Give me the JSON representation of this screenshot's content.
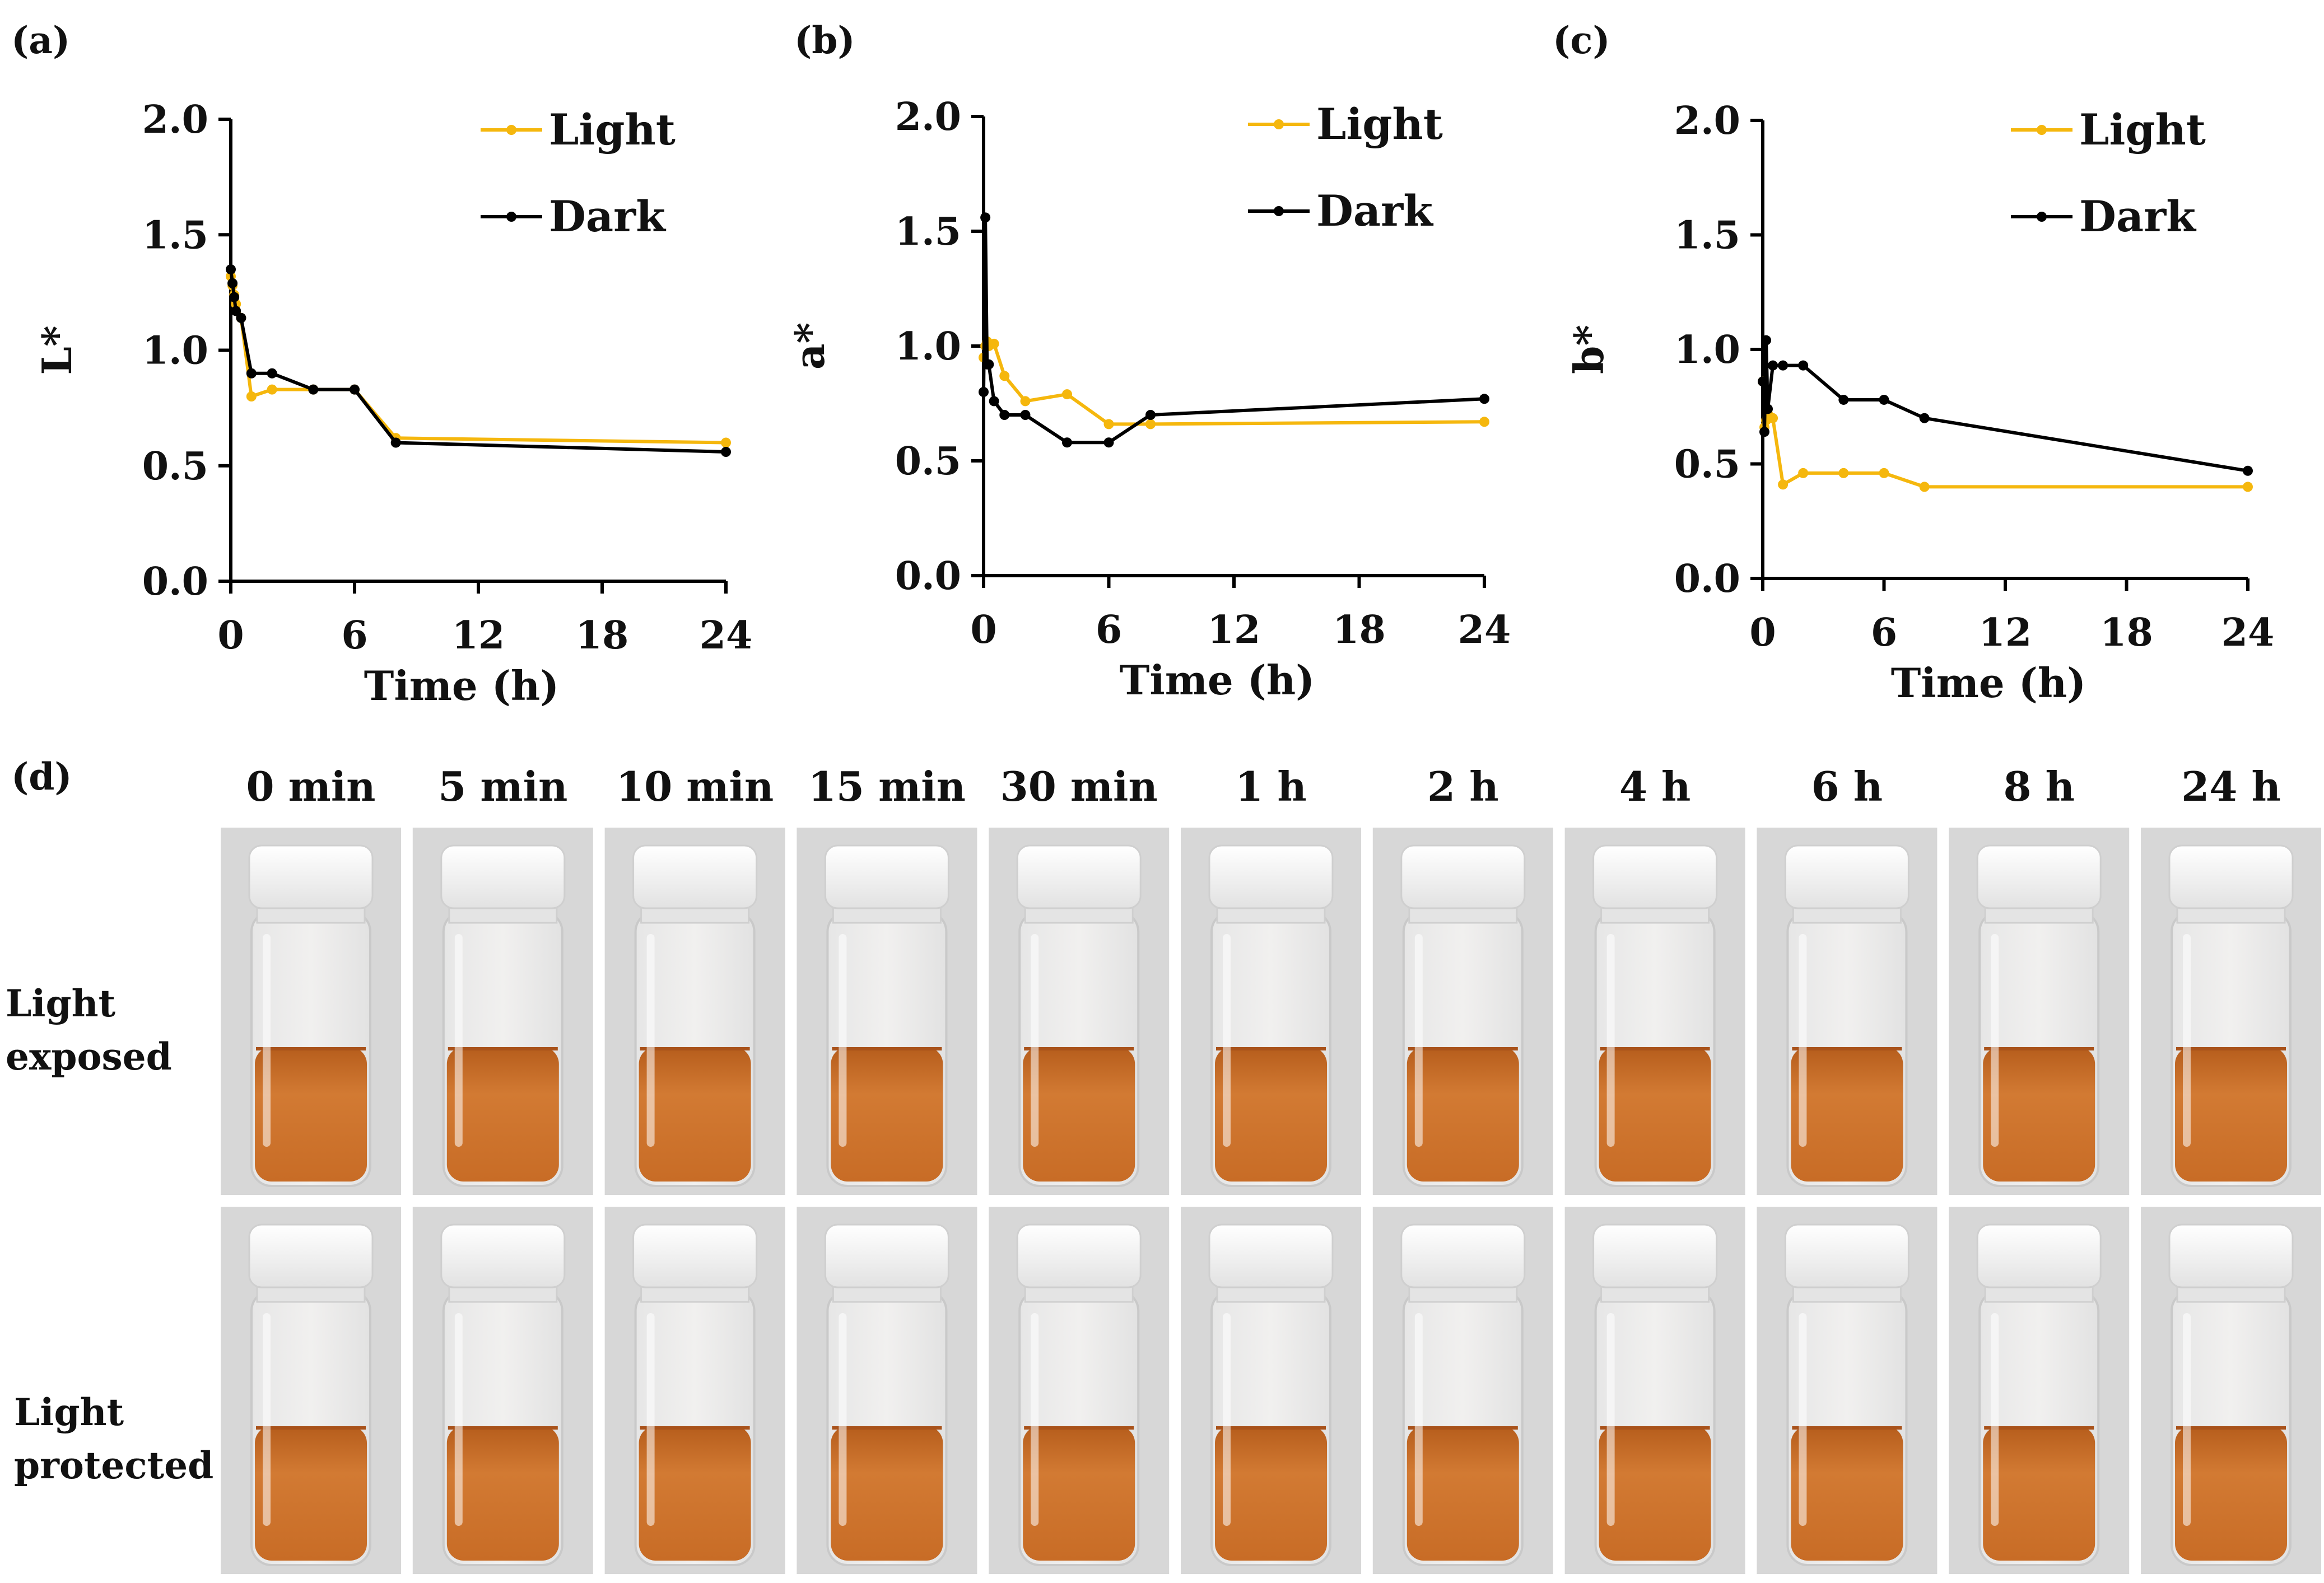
{
  "panel_labels": [
    "(a)",
    "(b)",
    "(c)",
    "(d)"
  ],
  "colors": {
    "light": "#f5b70d",
    "dark": "#000000",
    "axis": "#000000",
    "liquid": "#cc6a24",
    "cap": "#f4f4f4",
    "photo_bg": "#d7d7d7"
  },
  "chart_data": [
    {
      "type": "line",
      "panel": "(a)",
      "ylabel": "L*",
      "xlabel": "Time (h)",
      "xlim": [
        0,
        24
      ],
      "ylim": [
        0,
        2
      ],
      "xticks": [
        "0",
        "6",
        "12",
        "18",
        "24"
      ],
      "yticks": [
        "0.0",
        "0.5",
        "1.0",
        "1.5",
        "2.0"
      ],
      "grid": false,
      "legend_position": "top-right",
      "series": [
        {
          "name": "Light",
          "color": "#f5b70d",
          "x": [
            0,
            0.0833,
            0.1667,
            0.25,
            0.5,
            1,
            2,
            4,
            6,
            8,
            24
          ],
          "y": [
            1.32,
            1.28,
            1.24,
            1.2,
            1.14,
            0.8,
            0.83,
            0.83,
            0.83,
            0.62,
            0.6
          ]
        },
        {
          "name": "Dark",
          "color": "#000000",
          "x": [
            0,
            0.0833,
            0.1667,
            0.25,
            0.5,
            1,
            2,
            4,
            6,
            8,
            24
          ],
          "y": [
            1.35,
            1.29,
            1.23,
            1.17,
            1.14,
            0.9,
            0.9,
            0.83,
            0.83,
            0.6,
            0.56
          ]
        }
      ]
    },
    {
      "type": "line",
      "panel": "(b)",
      "ylabel": "a*",
      "xlabel": "Time (h)",
      "xlim": [
        0,
        24
      ],
      "ylim": [
        0,
        2
      ],
      "xticks": [
        "0",
        "6",
        "12",
        "18",
        "24"
      ],
      "yticks": [
        "0.0",
        "0.5",
        "1.0",
        "1.5",
        "2.0"
      ],
      "grid": false,
      "legend_position": "top-right",
      "series": [
        {
          "name": "Light",
          "color": "#f5b70d",
          "x": [
            0,
            0.0833,
            0.1667,
            0.25,
            0.5,
            1,
            2,
            4,
            6,
            8,
            24
          ],
          "y": [
            0.95,
            1.0,
            1.02,
            1.0,
            1.01,
            0.87,
            0.76,
            0.79,
            0.66,
            0.66,
            0.67
          ]
        },
        {
          "name": "Dark",
          "color": "#000000",
          "x": [
            0,
            0.0833,
            0.1667,
            0.25,
            0.5,
            1,
            2,
            4,
            6,
            8,
            24
          ],
          "y": [
            0.8,
            1.56,
            0.92,
            0.92,
            0.76,
            0.7,
            0.7,
            0.58,
            0.58,
            0.7,
            0.77
          ]
        }
      ]
    },
    {
      "type": "line",
      "panel": "(c)",
      "ylabel": "b*",
      "xlabel": "Time (h)",
      "xlim": [
        0,
        24
      ],
      "ylim": [
        0,
        2
      ],
      "xticks": [
        "0",
        "6",
        "12",
        "18",
        "24"
      ],
      "yticks": [
        "0.0",
        "0.5",
        "1.0",
        "1.5",
        "2.0"
      ],
      "grid": false,
      "legend_position": "top-right",
      "series": [
        {
          "name": "Light",
          "color": "#f5b70d",
          "x": [
            0,
            0.0833,
            0.1667,
            0.25,
            0.5,
            1,
            2,
            4,
            6,
            8,
            24
          ],
          "y": [
            0.86,
            0.66,
            0.69,
            0.72,
            0.7,
            0.41,
            0.46,
            0.46,
            0.46,
            0.4,
            0.4
          ]
        },
        {
          "name": "Dark",
          "color": "#000000",
          "x": [
            0,
            0.0833,
            0.1667,
            0.25,
            0.5,
            1,
            2,
            4,
            6,
            8,
            24
          ],
          "y": [
            0.86,
            0.64,
            1.04,
            0.74,
            0.93,
            0.93,
            0.93,
            0.78,
            0.78,
            0.7,
            0.47
          ]
        }
      ]
    }
  ],
  "photos": {
    "time_labels": [
      "0 min",
      "5 min",
      "10 min",
      "15 min",
      "30 min",
      "1 h",
      "2 h",
      "4 h",
      "6 h",
      "8 h",
      "24 h"
    ],
    "rows": [
      {
        "label_line1": "Light",
        "label_line2": "exposed"
      },
      {
        "label_line1": "Light",
        "label_line2": "protected"
      }
    ]
  }
}
